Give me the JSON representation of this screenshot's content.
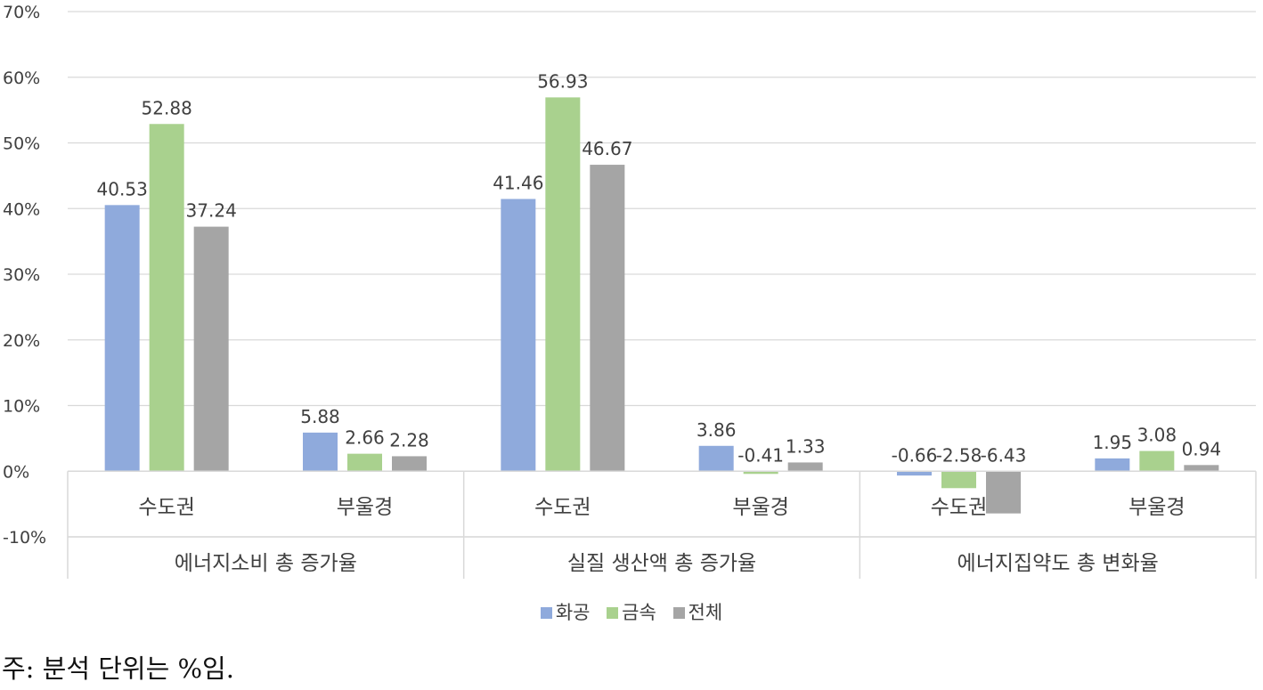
{
  "chart_data": {
    "type": "bar",
    "ylim": [
      -10,
      70
    ],
    "y_ticks": [
      "70%",
      "60%",
      "50%",
      "40%",
      "30%",
      "20%",
      "10%",
      "0%",
      "-10%"
    ],
    "y_tick_values": [
      70,
      60,
      50,
      40,
      30,
      20,
      10,
      0,
      -10
    ],
    "grid": true,
    "legend_position": "bottom",
    "groups": [
      {
        "name": "에너지소비 총 증가율",
        "categories": [
          "수도권",
          "부울경"
        ]
      },
      {
        "name": "실질 생산액 총 증가율",
        "categories": [
          "수도권",
          "부울경"
        ]
      },
      {
        "name": "에너지집약도 총 변화율",
        "categories": [
          "수도권",
          "부울경"
        ]
      }
    ],
    "series": [
      {
        "name": "화공",
        "color": "#8faadc",
        "values": [
          40.53,
          5.88,
          41.46,
          3.86,
          -0.66,
          1.95
        ],
        "labels": [
          "40.53",
          "5.88",
          "41.46",
          "3.86",
          "-0.66",
          "1.95"
        ]
      },
      {
        "name": "금속",
        "color": "#a9d18e",
        "values": [
          52.88,
          2.66,
          56.93,
          -0.41,
          -2.58,
          3.08
        ],
        "labels": [
          "52.88",
          "2.66",
          "56.93",
          "-0.41",
          "-2.58",
          "3.08"
        ]
      },
      {
        "name": "전체",
        "color": "#a5a5a5",
        "values": [
          37.24,
          2.28,
          46.67,
          1.33,
          -6.43,
          0.94
        ],
        "labels": [
          "37.24",
          "2.28",
          "46.67",
          "1.33",
          "-6.43",
          "0.94"
        ]
      }
    ]
  },
  "note": "주: 분석 단위는 %임."
}
